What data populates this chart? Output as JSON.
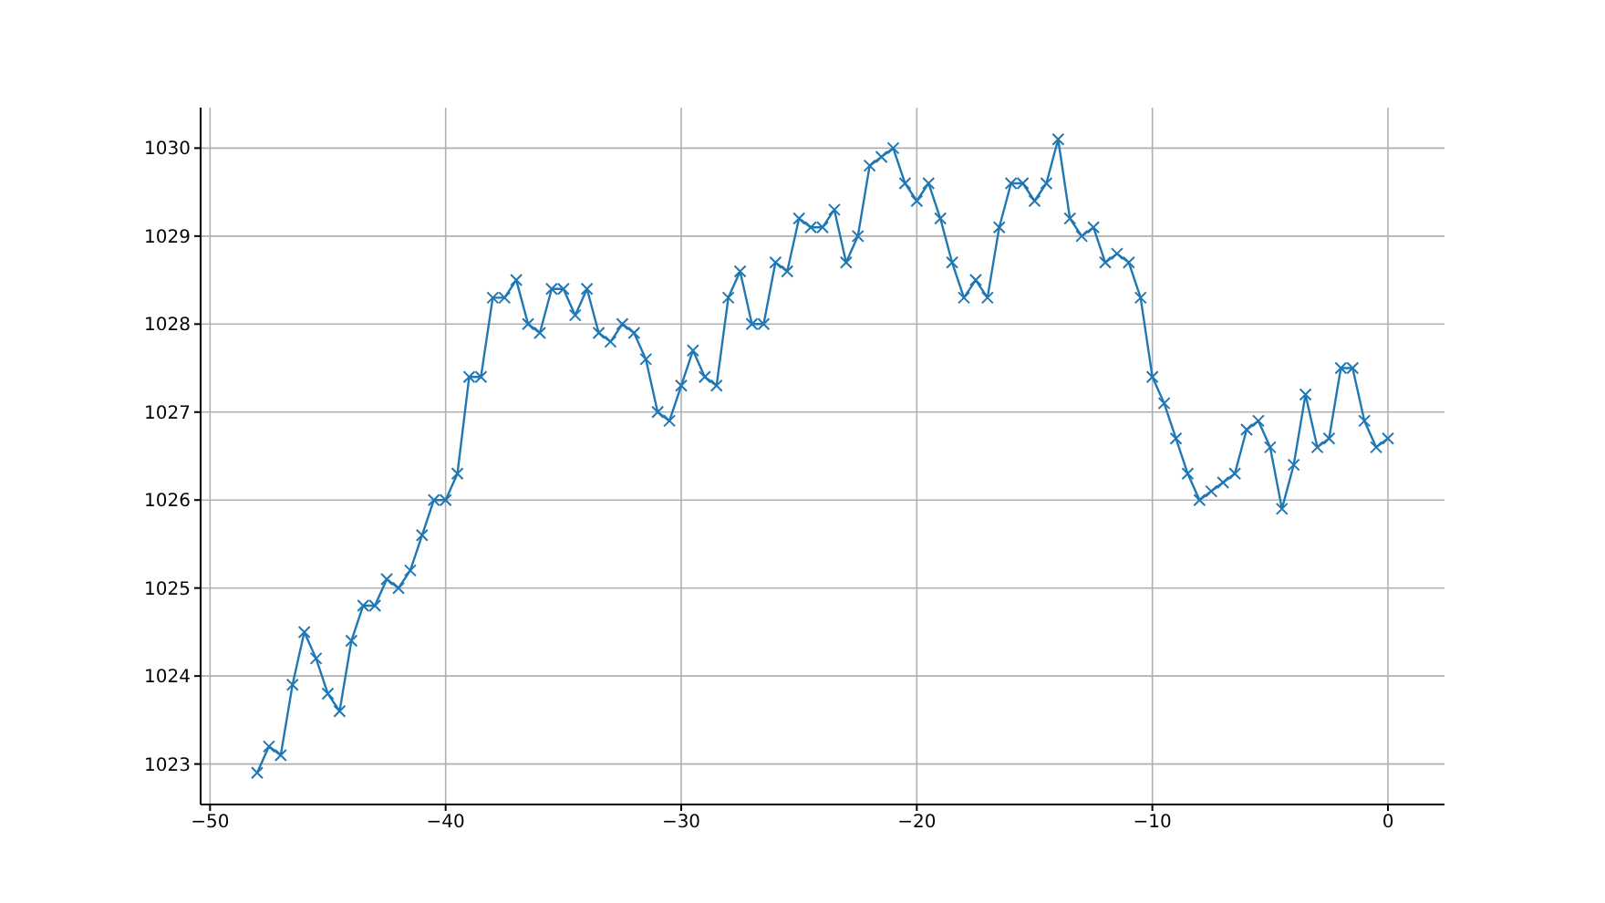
{
  "chart_data": {
    "type": "line",
    "x": [
      -48,
      -47.5,
      -47,
      -46.5,
      -46,
      -45.5,
      -45,
      -44.5,
      -44,
      -43.5,
      -43,
      -42.5,
      -42,
      -41.5,
      -41,
      -40.5,
      -40,
      -39.5,
      -39,
      -38.5,
      -38,
      -37.5,
      -37,
      -36.5,
      -36,
      -35.5,
      -35,
      -34.5,
      -34,
      -33.5,
      -33,
      -32.5,
      -32,
      -31.5,
      -31,
      -30.5,
      -30,
      -29.5,
      -29,
      -28.5,
      -28,
      -27.5,
      -27,
      -26.5,
      -26,
      -25.5,
      -25,
      -24.5,
      -24,
      -23.5,
      -23,
      -22.5,
      -22,
      -21.5,
      -21,
      -20.5,
      -20,
      -19.5,
      -19,
      -18.5,
      -18,
      -17.5,
      -17,
      -16.5,
      -16,
      -15.5,
      -15,
      -14.5,
      -14,
      -13.5,
      -13,
      -12.5,
      -12,
      -11.5,
      -11,
      -10.5,
      -10,
      -9.5,
      -9,
      -8.5,
      -8,
      -7.5,
      -7,
      -6.5,
      -6,
      -5.5,
      -5,
      -4.5,
      -4,
      -3.5,
      -3,
      -2.5,
      -2,
      -1.5,
      -1,
      -0.5,
      0
    ],
    "series": [
      {
        "color": "#1f77b4",
        "values": [
          1022.9,
          1023.2,
          1023.1,
          1023.9,
          1024.5,
          1024.2,
          1023.8,
          1023.6,
          1024.4,
          1024.8,
          1024.8,
          1025.1,
          1025.0,
          1025.2,
          1025.6,
          1026.0,
          1026.0,
          1026.3,
          1027.4,
          1027.4,
          1028.3,
          1028.3,
          1028.5,
          1028.0,
          1027.9,
          1028.4,
          1028.4,
          1028.1,
          1028.4,
          1027.9,
          1027.8,
          1028.0,
          1027.9,
          1027.6,
          1027.0,
          1026.9,
          1027.3,
          1027.7,
          1027.4,
          1027.3,
          1028.3,
          1028.6,
          1028.0,
          1028.0,
          1028.7,
          1028.6,
          1029.2,
          1029.1,
          1029.1,
          1029.3,
          1028.7,
          1029.0,
          1029.8,
          1029.9,
          1030.0,
          1029.6,
          1029.4,
          1029.6,
          1029.2,
          1028.7,
          1028.3,
          1028.5,
          1028.3,
          1029.1,
          1029.6,
          1029.6,
          1029.4,
          1029.6,
          1030.1,
          1029.2,
          1029.0,
          1029.1,
          1028.7,
          1028.8,
          1028.7,
          1028.3,
          1027.4,
          1027.1,
          1026.7,
          1026.3,
          1026.0,
          1026.1,
          1026.2,
          1026.3,
          1026.8,
          1026.9,
          1026.6,
          1025.9,
          1026.4,
          1027.2,
          1026.6,
          1026.7,
          1027.5,
          1027.5,
          1026.9,
          1026.6,
          1026.7
        ]
      }
    ],
    "xlim": [
      -50.4,
      2.4
    ],
    "xticks": [
      -50,
      -40,
      -30,
      -20,
      -10,
      0
    ],
    "ylim": [
      1022.54,
      1030.46
    ],
    "yticks": [
      1023,
      1024,
      1025,
      1026,
      1027,
      1028,
      1029,
      1030
    ],
    "grid": true,
    "marker": "cross",
    "line_style": "solid"
  }
}
